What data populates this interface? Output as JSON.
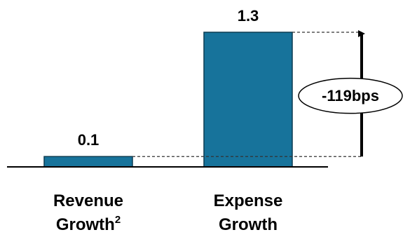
{
  "chart_data": {
    "type": "bar",
    "categories": [
      {
        "line1": "Revenue",
        "line2": "Growth",
        "superscript": "2"
      },
      {
        "line1": "Expense",
        "line2": "Growth",
        "superscript": ""
      }
    ],
    "values": [
      0.1,
      1.3
    ],
    "value_labels": [
      "0.1",
      "1.3"
    ],
    "annotation": "-119bps",
    "title": "",
    "xlabel": "",
    "ylabel": "",
    "grid": false,
    "legend": "none"
  },
  "colors": {
    "bar_fill": "#17739b",
    "bar_stroke": "#0b3c52",
    "axis": "#000000",
    "guide": "#333333"
  }
}
